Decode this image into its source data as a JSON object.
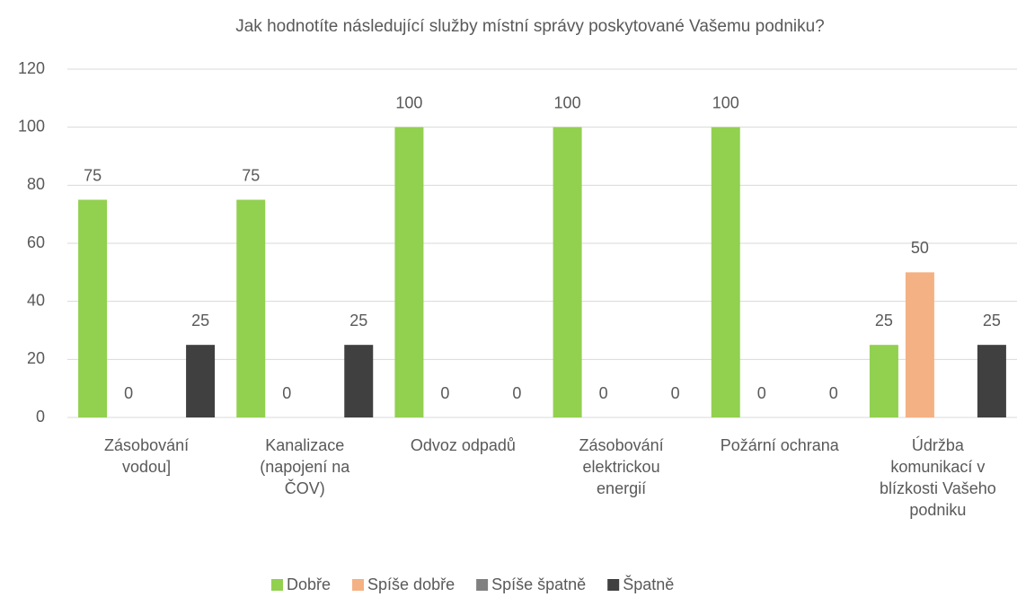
{
  "chart_data": {
    "type": "bar",
    "title": "Jak hodnotíte následující služby místní správy poskytované Vašemu podniku?",
    "categories": [
      [
        "Zásobování",
        "vodou]"
      ],
      [
        "Kanalizace",
        "(napojení na",
        "ČOV)"
      ],
      [
        "Odvoz odpadů"
      ],
      [
        "Zásobování",
        "elektrickou",
        "energií"
      ],
      [
        "Požární ochrana"
      ],
      [
        "Údržba",
        "komunikací v",
        "blízkosti Vašeho",
        "podniku"
      ]
    ],
    "series": [
      {
        "name": "Dobře",
        "color": "#92d050",
        "values": [
          75,
          75,
          100,
          100,
          100,
          25
        ]
      },
      {
        "name": "Spíše dobře",
        "color": "#f4b183",
        "values": [
          0,
          0,
          0,
          0,
          0,
          50
        ]
      },
      {
        "name": "Spíše špatně",
        "color": "#808080",
        "values": [
          null,
          null,
          null,
          null,
          null,
          null
        ]
      },
      {
        "name": "Špatně",
        "color": "#404040",
        "values": [
          25,
          25,
          0,
          0,
          0,
          25
        ]
      }
    ],
    "ylim": [
      0,
      120
    ],
    "yticks": [
      0,
      20,
      40,
      60,
      80,
      100,
      120
    ],
    "grid": true,
    "legend": "bottom"
  }
}
